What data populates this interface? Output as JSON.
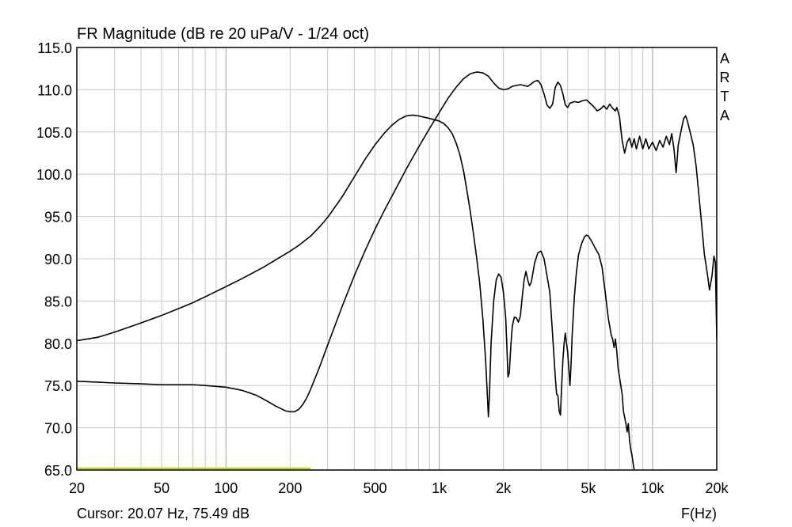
{
  "title": "FR Magnitude (dB re 20 uPa/V - 1/24 oct)",
  "watermark": [
    "A",
    "R",
    "T",
    "A"
  ],
  "cursor_readout": "Cursor: 20.07 Hz, 75.49 dB",
  "x_axis_unit_label": "F(Hz)",
  "colors": {
    "background": "#ffffff",
    "plot_border": "#000000",
    "grid_minor": "#c8c8c8",
    "grid_major": "#a0a0a0",
    "curve": "#000000",
    "cursor_marker": "#c8c800"
  },
  "chart_data": {
    "type": "line",
    "title": "FR Magnitude (dB re 20 uPa/V - 1/24 oct)",
    "xlabel": "F(Hz)",
    "ylabel": "",
    "x_scale": "log",
    "xlim": [
      20,
      20000
    ],
    "ylim": [
      65,
      115
    ],
    "x_tick_labels": [
      {
        "value": 20,
        "label": "20"
      },
      {
        "value": 50,
        "label": "50"
      },
      {
        "value": 100,
        "label": "100"
      },
      {
        "value": 200,
        "label": "200"
      },
      {
        "value": 500,
        "label": "500"
      },
      {
        "value": 1000,
        "label": "1k"
      },
      {
        "value": 2000,
        "label": "2k"
      },
      {
        "value": 5000,
        "label": "5k"
      },
      {
        "value": 10000,
        "label": "10k"
      },
      {
        "value": 20000,
        "label": "20k"
      }
    ],
    "y_tick_labels": [
      {
        "value": 115,
        "label": "115.0"
      },
      {
        "value": 110,
        "label": "110.0"
      },
      {
        "value": 105,
        "label": "105.0"
      },
      {
        "value": 100,
        "label": "100.0"
      },
      {
        "value": 95,
        "label": "95.0"
      },
      {
        "value": 90,
        "label": "90.0"
      },
      {
        "value": 85,
        "label": "85.0"
      },
      {
        "value": 80,
        "label": "80.0"
      },
      {
        "value": 75,
        "label": "75.0"
      },
      {
        "value": 70,
        "label": "70.0"
      },
      {
        "value": 65,
        "label": "65.0"
      }
    ],
    "grid": true,
    "series": [
      {
        "points": [
          [
            20,
            80.3
          ],
          [
            25,
            80.7
          ],
          [
            30,
            81.3
          ],
          [
            40,
            82.4
          ],
          [
            50,
            83.3
          ],
          [
            60,
            84.1
          ],
          [
            70,
            84.8
          ],
          [
            80,
            85.5
          ],
          [
            100,
            86.7
          ],
          [
            120,
            87.7
          ],
          [
            150,
            89.0
          ],
          [
            180,
            90.2
          ],
          [
            200,
            90.9
          ],
          [
            220,
            91.6
          ],
          [
            250,
            92.7
          ],
          [
            280,
            94.0
          ],
          [
            300,
            94.9
          ],
          [
            350,
            97.3
          ],
          [
            400,
            99.7
          ],
          [
            450,
            101.8
          ],
          [
            500,
            103.5
          ],
          [
            550,
            104.8
          ],
          [
            600,
            105.8
          ],
          [
            650,
            106.5
          ],
          [
            700,
            106.9
          ],
          [
            750,
            107.0
          ],
          [
            800,
            106.9
          ],
          [
            900,
            106.6
          ],
          [
            1000,
            106.3
          ],
          [
            1050,
            106.0
          ],
          [
            1100,
            105.5
          ],
          [
            1150,
            104.8
          ],
          [
            1200,
            103.7
          ],
          [
            1250,
            102.3
          ],
          [
            1300,
            100.4
          ],
          [
            1350,
            98.0
          ],
          [
            1400,
            95.5
          ],
          [
            1450,
            92.8
          ],
          [
            1500,
            90.0
          ],
          [
            1550,
            87.0
          ],
          [
            1600,
            83.0
          ],
          [
            1650,
            78.0
          ],
          [
            1680,
            74.0
          ],
          [
            1700,
            71.3
          ],
          [
            1720,
            74.0
          ],
          [
            1750,
            80.0
          ],
          [
            1800,
            85.0
          ],
          [
            1850,
            87.5
          ],
          [
            1900,
            88.2
          ],
          [
            1950,
            87.8
          ],
          [
            2000,
            86.0
          ],
          [
            2050,
            83.0
          ],
          [
            2080,
            79.0
          ],
          [
            2100,
            76.0
          ],
          [
            2130,
            76.5
          ],
          [
            2170,
            80.0
          ],
          [
            2200,
            82.0
          ],
          [
            2250,
            83.1
          ],
          [
            2300,
            83.0
          ],
          [
            2350,
            82.5
          ],
          [
            2400,
            83.2
          ],
          [
            2450,
            85.5
          ],
          [
            2500,
            87.5
          ],
          [
            2550,
            88.5
          ],
          [
            2600,
            87.5
          ],
          [
            2650,
            86.8
          ],
          [
            2700,
            87.2
          ],
          [
            2800,
            89.5
          ],
          [
            2900,
            90.7
          ],
          [
            3000,
            90.9
          ],
          [
            3100,
            90.0
          ],
          [
            3200,
            88.0
          ],
          [
            3300,
            86.0
          ],
          [
            3400,
            81.0
          ],
          [
            3500,
            76.0
          ],
          [
            3550,
            74.0
          ],
          [
            3600,
            73.8
          ],
          [
            3650,
            72.0
          ],
          [
            3700,
            71.5
          ],
          [
            3750,
            75.0
          ],
          [
            3800,
            78.0
          ],
          [
            3850,
            80.0
          ],
          [
            3900,
            81.2
          ],
          [
            3950,
            80.0
          ],
          [
            4000,
            79.0
          ],
          [
            4050,
            77.0
          ],
          [
            4100,
            75.0
          ],
          [
            4150,
            77.5
          ],
          [
            4200,
            81.0
          ],
          [
            4300,
            85.5
          ],
          [
            4400,
            88.5
          ],
          [
            4500,
            90.5
          ],
          [
            4650,
            91.8
          ],
          [
            4800,
            92.6
          ],
          [
            4900,
            92.8
          ],
          [
            5000,
            92.7
          ],
          [
            5200,
            92.0
          ],
          [
            5400,
            91.2
          ],
          [
            5600,
            90.5
          ],
          [
            5800,
            89.0
          ],
          [
            6000,
            86.0
          ],
          [
            6200,
            83.0
          ],
          [
            6400,
            81.0
          ],
          [
            6500,
            80.5
          ],
          [
            6600,
            79.5
          ],
          [
            6700,
            80.5
          ],
          [
            6800,
            79.0
          ],
          [
            6900,
            77.0
          ],
          [
            7000,
            76.0
          ],
          [
            7100,
            75.0
          ],
          [
            7200,
            74.0
          ],
          [
            7300,
            72.0
          ],
          [
            7500,
            70.5
          ],
          [
            7600,
            69.5
          ],
          [
            7700,
            70.5
          ],
          [
            7800,
            68.5
          ],
          [
            7900,
            67.5
          ],
          [
            8000,
            66.8
          ],
          [
            8200,
            65.0
          ]
        ]
      },
      {
        "points": [
          [
            20,
            75.5
          ],
          [
            25,
            75.4
          ],
          [
            30,
            75.3
          ],
          [
            40,
            75.2
          ],
          [
            50,
            75.1
          ],
          [
            60,
            75.1
          ],
          [
            70,
            75.1
          ],
          [
            80,
            75.0
          ],
          [
            90,
            74.9
          ],
          [
            100,
            74.8
          ],
          [
            110,
            74.6
          ],
          [
            120,
            74.4
          ],
          [
            130,
            74.1
          ],
          [
            140,
            73.8
          ],
          [
            150,
            73.4
          ],
          [
            160,
            73.0
          ],
          [
            170,
            72.6
          ],
          [
            180,
            72.3
          ],
          [
            190,
            72.0
          ],
          [
            200,
            71.9
          ],
          [
            210,
            71.9
          ],
          [
            220,
            72.2
          ],
          [
            230,
            72.8
          ],
          [
            240,
            73.6
          ],
          [
            250,
            74.6
          ],
          [
            275,
            77.2
          ],
          [
            300,
            79.8
          ],
          [
            350,
            84.3
          ],
          [
            400,
            88.0
          ],
          [
            450,
            91.0
          ],
          [
            500,
            93.5
          ],
          [
            550,
            95.6
          ],
          [
            600,
            97.4
          ],
          [
            700,
            100.6
          ],
          [
            800,
            103.2
          ],
          [
            900,
            105.4
          ],
          [
            1000,
            107.3
          ],
          [
            1100,
            109.0
          ],
          [
            1200,
            110.3
          ],
          [
            1300,
            111.3
          ],
          [
            1400,
            111.9
          ],
          [
            1500,
            112.1
          ],
          [
            1600,
            112.0
          ],
          [
            1700,
            111.6
          ],
          [
            1800,
            110.8
          ],
          [
            1900,
            110.2
          ],
          [
            2000,
            110.0
          ],
          [
            2100,
            110.1
          ],
          [
            2200,
            110.4
          ],
          [
            2400,
            110.6
          ],
          [
            2500,
            110.5
          ],
          [
            2600,
            110.4
          ],
          [
            2700,
            110.7
          ],
          [
            2800,
            111.0
          ],
          [
            2900,
            111.1
          ],
          [
            3000,
            110.6
          ],
          [
            3100,
            109.5
          ],
          [
            3200,
            108.2
          ],
          [
            3300,
            107.8
          ],
          [
            3400,
            108.3
          ],
          [
            3500,
            110.3
          ],
          [
            3600,
            110.9
          ],
          [
            3700,
            110.5
          ],
          [
            3800,
            109.5
          ],
          [
            3900,
            108.2
          ],
          [
            4000,
            107.9
          ],
          [
            4100,
            108.4
          ],
          [
            4300,
            108.6
          ],
          [
            4500,
            108.5
          ],
          [
            4700,
            108.7
          ],
          [
            4900,
            108.8
          ],
          [
            5100,
            108.4
          ],
          [
            5300,
            108.0
          ],
          [
            5500,
            107.5
          ],
          [
            5700,
            107.7
          ],
          [
            5900,
            108.1
          ],
          [
            6100,
            107.7
          ],
          [
            6300,
            108.3
          ],
          [
            6500,
            107.8
          ],
          [
            6700,
            107.5
          ],
          [
            6800,
            107.9
          ],
          [
            7000,
            106.8
          ],
          [
            7200,
            104.0
          ],
          [
            7400,
            102.5
          ],
          [
            7600,
            103.8
          ],
          [
            7800,
            104.3
          ],
          [
            8000,
            103.2
          ],
          [
            8200,
            104.2
          ],
          [
            8400,
            103.0
          ],
          [
            8700,
            104.5
          ],
          [
            9000,
            103.0
          ],
          [
            9300,
            104.2
          ],
          [
            9600,
            103.0
          ],
          [
            10000,
            103.8
          ],
          [
            10400,
            102.8
          ],
          [
            10800,
            104.0
          ],
          [
            11200,
            103.2
          ],
          [
            11600,
            104.5
          ],
          [
            12000,
            103.5
          ],
          [
            12300,
            104.8
          ],
          [
            12600,
            103.0
          ],
          [
            12900,
            100.2
          ],
          [
            13200,
            103.5
          ],
          [
            13700,
            105.5
          ],
          [
            14000,
            106.6
          ],
          [
            14300,
            106.9
          ],
          [
            14600,
            106.2
          ],
          [
            15000,
            105.0
          ],
          [
            15500,
            103.5
          ],
          [
            16000,
            101.0
          ],
          [
            16500,
            97.5
          ],
          [
            17000,
            94.0
          ],
          [
            17500,
            90.5
          ],
          [
            18000,
            88.5
          ],
          [
            18500,
            86.3
          ],
          [
            19000,
            88.0
          ],
          [
            19400,
            90.3
          ],
          [
            19700,
            89.6
          ],
          [
            20000,
            80.5
          ]
        ]
      }
    ],
    "annotations": [
      {
        "type": "cursor_marker",
        "x_from": 20,
        "x_to": 250,
        "y": 65.2
      }
    ]
  }
}
